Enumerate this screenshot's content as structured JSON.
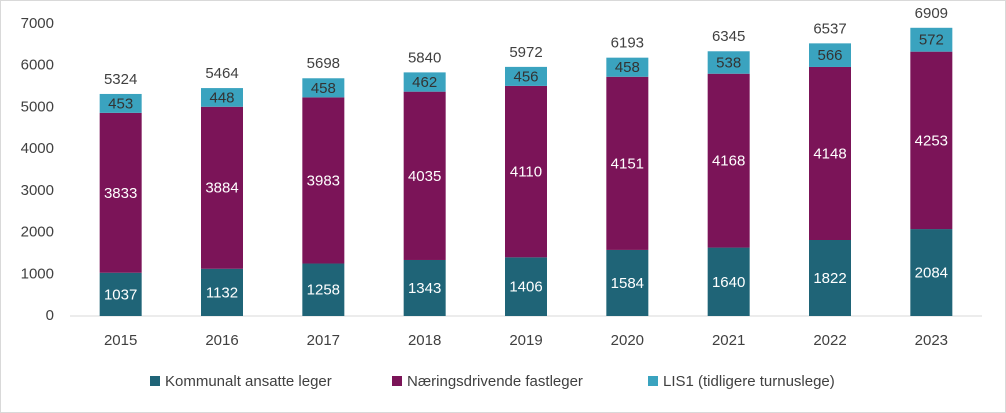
{
  "chart_data": {
    "type": "stacked-bar",
    "categories": [
      "2015",
      "2016",
      "2017",
      "2018",
      "2019",
      "2020",
      "2021",
      "2022",
      "2023"
    ],
    "series": [
      {
        "name": "Kommunalt ansatte leger",
        "color": "#1f6477",
        "label_color": "#ffffff",
        "values": [
          1037,
          1132,
          1258,
          1343,
          1406,
          1584,
          1640,
          1822,
          2084
        ]
      },
      {
        "name": "Næringsdrivende fastleger",
        "color": "#7b1458",
        "label_color": "#ffffff",
        "values": [
          3833,
          3884,
          3983,
          4035,
          4110,
          4151,
          4168,
          4148,
          4253
        ]
      },
      {
        "name": "LIS1 (tidligere turnuslege)",
        "color": "#3aa3bf",
        "label_color": "#333333",
        "values": [
          453,
          448,
          458,
          462,
          456,
          458,
          538,
          566,
          572
        ]
      }
    ],
    "totals": [
      5324,
      5464,
      5698,
      5840,
      5972,
      6193,
      6345,
      6537,
      6909
    ],
    "ylim": [
      0,
      7000
    ],
    "yticks": [
      0,
      1000,
      2000,
      3000,
      4000,
      5000,
      6000,
      7000
    ],
    "grid": false,
    "legend": "bottom"
  }
}
